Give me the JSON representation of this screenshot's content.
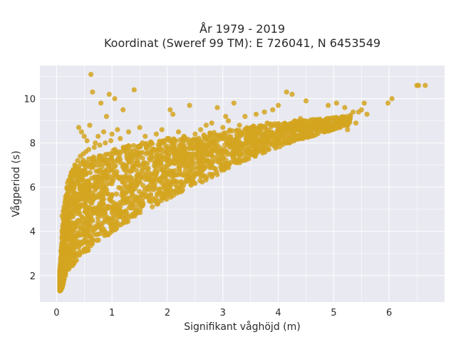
{
  "chart_data": {
    "type": "scatter",
    "title_lines": [
      "År 1979 - 2019",
      "Koordinat (Sweref 99 TM): E 726041, N 6453549"
    ],
    "xlabel": "Signifikant våghöjd (m)",
    "ylabel": "Vågperiod (s)",
    "xlim": [
      -0.3,
      7.0
    ],
    "ylim": [
      0.8,
      11.5
    ],
    "xticks": [
      0,
      1,
      2,
      3,
      4,
      5,
      6
    ],
    "yticks": [
      2,
      4,
      6,
      8,
      10
    ],
    "xtick_labels": [
      "0",
      "1",
      "2",
      "3",
      "4",
      "5",
      "6"
    ],
    "ytick_labels": [
      "2",
      "4",
      "6",
      "8",
      "10"
    ],
    "grid": true,
    "background": "#e9e9f1",
    "point_color": "#d4a420",
    "series": [
      {
        "x": [
          0.62,
          0.65,
          0.95,
          0.8,
          1.05,
          0.9,
          1.4,
          0.85,
          1.2,
          1.5,
          1.55,
          1.9,
          2.1,
          2.05,
          2.4,
          2.9,
          3.2,
          3.4,
          3.6,
          3.9,
          4.0,
          4.15,
          4.25,
          4.5,
          4.9,
          5.05,
          5.2,
          5.3,
          5.45,
          5.5,
          5.55,
          5.6,
          5.98,
          6.05,
          6.5,
          6.53,
          6.65,
          0.4,
          0.45,
          0.5,
          0.55,
          0.6,
          0.7,
          0.75,
          1.0,
          1.1,
          1.15,
          1.3,
          1.6,
          1.7,
          1.8,
          1.85,
          2.0,
          2.2,
          2.3,
          2.5,
          2.6,
          2.7,
          2.8,
          3.0,
          3.05,
          3.1,
          3.3,
          3.5,
          3.7,
          3.75,
          3.8,
          4.1,
          4.2,
          4.3,
          4.4,
          4.6,
          4.7,
          4.8,
          5.0,
          5.1,
          5.25,
          5.35,
          5.4,
          0.2,
          0.25,
          0.3,
          0.35,
          0.18,
          0.15,
          0.12,
          0.1,
          0.22,
          0.28,
          0.33,
          0.38,
          0.43,
          0.48,
          0.53,
          0.58,
          0.68,
          0.78,
          0.88,
          0.98
        ],
        "y": [
          11.1,
          10.3,
          10.2,
          9.8,
          10.0,
          9.2,
          10.4,
          8.5,
          9.5,
          8.7,
          8.0,
          8.6,
          9.3,
          9.5,
          9.7,
          9.6,
          9.8,
          9.2,
          9.3,
          9.5,
          9.7,
          10.3,
          10.2,
          9.9,
          9.7,
          9.8,
          9.6,
          9.2,
          9.4,
          9.5,
          9.8,
          9.3,
          9.8,
          10.0,
          10.6,
          10.6,
          10.6,
          8.7,
          8.5,
          8.3,
          8.1,
          8.8,
          8.0,
          8.3,
          8.4,
          8.6,
          8.2,
          8.5,
          8.3,
          8.0,
          8.4,
          7.8,
          8.2,
          8.5,
          8.3,
          8.4,
          8.6,
          8.8,
          8.9,
          8.7,
          9.2,
          9.0,
          8.8,
          8.5,
          8.2,
          9.4,
          8.9,
          8.6,
          8.7,
          9.0,
          9.1,
          8.8,
          8.9,
          9.0,
          8.7,
          8.8,
          8.6,
          9.4,
          8.9,
          6.2,
          6.5,
          6.8,
          6.9,
          5.6,
          5.3,
          4.9,
          4.7,
          6.0,
          6.6,
          7.0,
          7.2,
          7.4,
          7.5,
          7.6,
          7.7,
          7.8,
          7.9,
          8.0,
          8.1
        ],
        "lower_x": [
          0.08,
          0.12,
          0.18,
          0.25,
          0.35,
          0.45,
          0.6,
          0.8,
          1.0,
          1.2,
          1.5,
          1.8,
          2.1,
          2.4,
          2.7,
          3.0,
          3.3,
          3.6,
          3.9,
          4.2,
          4.6,
          5.0,
          5.3
        ],
        "lower_y": [
          1.3,
          1.6,
          2.0,
          2.3,
          2.6,
          2.9,
          3.2,
          3.6,
          3.9,
          4.3,
          4.8,
          5.2,
          5.6,
          6.0,
          6.3,
          6.7,
          7.1,
          7.4,
          7.7,
          8.0,
          8.3,
          8.6,
          8.8
        ],
        "upper_x": [
          0.05,
          0.08,
          0.1,
          0.13,
          0.17,
          0.22,
          0.28,
          0.35,
          0.45,
          0.6,
          0.8,
          1.0,
          1.3,
          1.6,
          2.0,
          2.4,
          2.8,
          3.2,
          3.6,
          4.0,
          4.4,
          4.8,
          5.2,
          5.4
        ],
        "upper_y": [
          1.8,
          3.0,
          4.0,
          5.0,
          5.8,
          6.4,
          6.8,
          7.0,
          7.2,
          7.3,
          7.5,
          7.7,
          7.9,
          8.0,
          8.2,
          8.3,
          8.5,
          8.6,
          8.8,
          8.9,
          9.0,
          9.1,
          9.2,
          9.3
        ]
      }
    ]
  }
}
